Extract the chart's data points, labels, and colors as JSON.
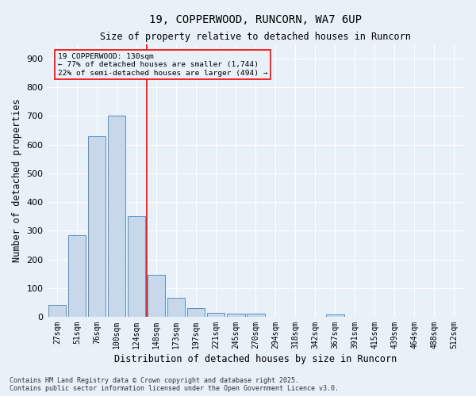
{
  "title1": "19, COPPERWOOD, RUNCORN, WA7 6UP",
  "title2": "Size of property relative to detached houses in Runcorn",
  "xlabel": "Distribution of detached houses by size in Runcorn",
  "ylabel": "Number of detached properties",
  "bar_color": "#c8d8ea",
  "bar_edge_color": "#5a8fbf",
  "background_color": "#e8f0f8",
  "grid_color": "#ffffff",
  "categories": [
    "27sqm",
    "51sqm",
    "76sqm",
    "100sqm",
    "124sqm",
    "148sqm",
    "173sqm",
    "197sqm",
    "221sqm",
    "245sqm",
    "270sqm",
    "294sqm",
    "318sqm",
    "342sqm",
    "367sqm",
    "391sqm",
    "415sqm",
    "439sqm",
    "464sqm",
    "488sqm",
    "512sqm"
  ],
  "values": [
    40,
    285,
    630,
    700,
    350,
    145,
    65,
    30,
    13,
    10,
    10,
    0,
    0,
    0,
    8,
    0,
    0,
    0,
    0,
    0,
    0
  ],
  "red_line_x": 4.5,
  "annotation_line1": "19 COPPERWOOD: 130sqm",
  "annotation_line2": "← 77% of detached houses are smaller (1,744)",
  "annotation_line3": "22% of semi-detached houses are larger (494) →",
  "marker_color": "red",
  "ylim": [
    0,
    950
  ],
  "yticks": [
    0,
    100,
    200,
    300,
    400,
    500,
    600,
    700,
    800,
    900
  ],
  "footnote1": "Contains HM Land Registry data © Crown copyright and database right 2025.",
  "footnote2": "Contains public sector information licensed under the Open Government Licence v3.0."
}
